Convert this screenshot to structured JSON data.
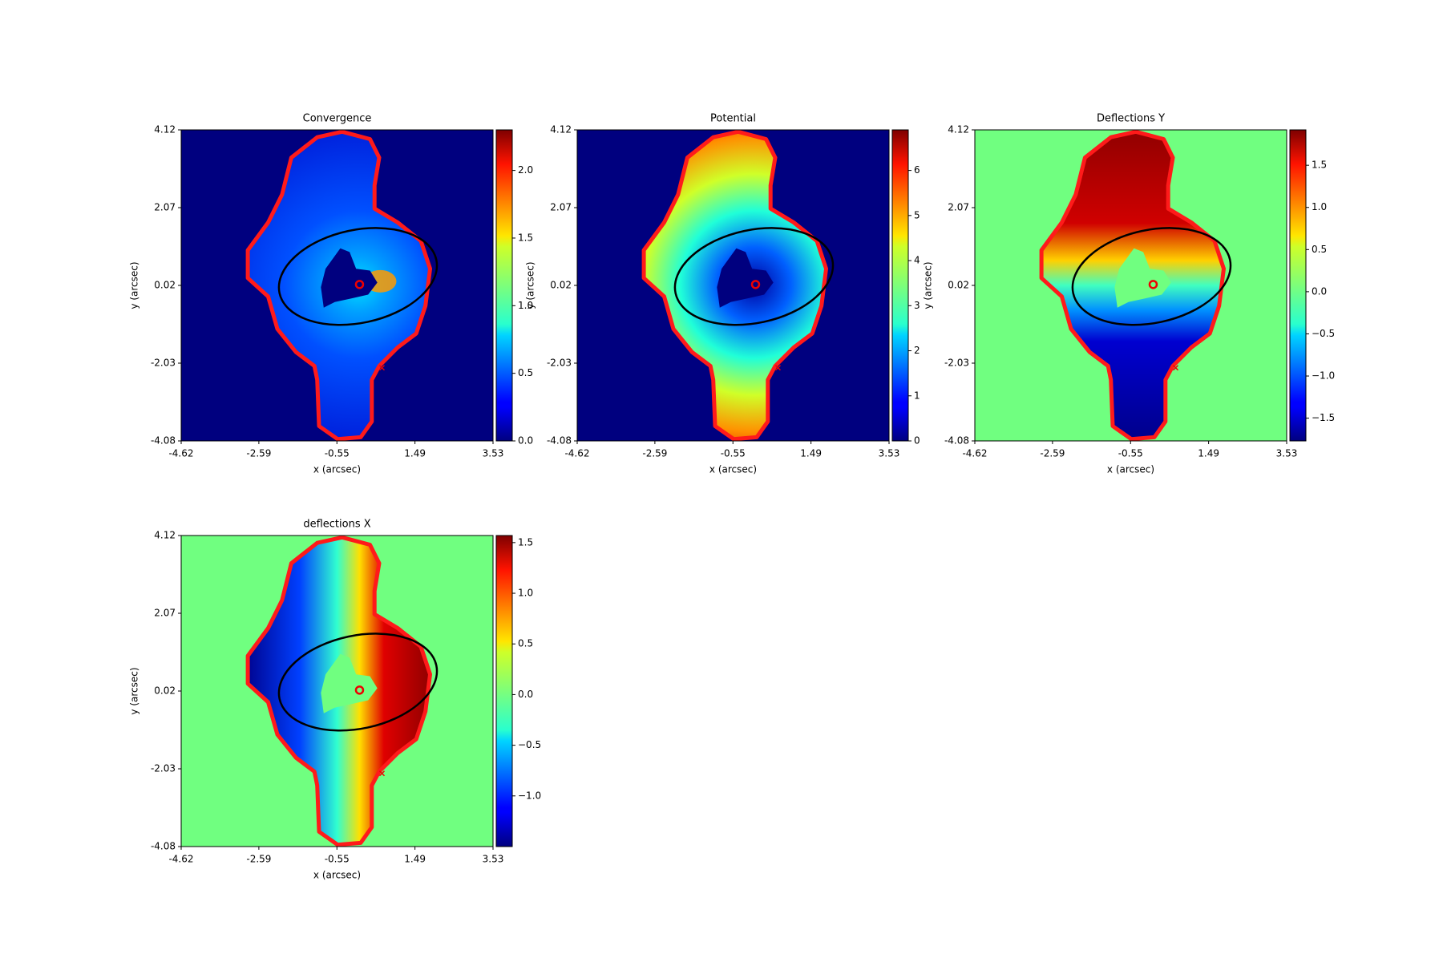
{
  "chart_data": [
    {
      "type": "image",
      "title": "Convergence",
      "xlabel": "x (arcsec)",
      "ylabel": "y (arcsec)",
      "xlim": [
        -4.62,
        3.53
      ],
      "ylim": [
        -4.08,
        4.12
      ],
      "xticks": [
        -4.62,
        -2.59,
        -0.55,
        1.49,
        3.53
      ],
      "yticks": [
        -4.08,
        -2.03,
        0.02,
        2.07,
        4.12
      ],
      "cmap": "jet",
      "clim": [
        0,
        2.3
      ],
      "cticks": [
        {
          "value": 0,
          "label": "0.0"
        },
        0.5,
        {
          "value": 1,
          "label": "1.0"
        },
        1.5,
        {
          "value": 2,
          "label": "2.0"
        }
      ]
    },
    {
      "type": "image",
      "title": "Potential",
      "xlabel": "x (arcsec)",
      "ylabel": "y (arcsec)",
      "xlim": [
        -4.62,
        3.53
      ],
      "ylim": [
        -4.08,
        4.12
      ],
      "xticks": [
        -4.62,
        -2.59,
        -0.55,
        1.49,
        3.53
      ],
      "yticks": [
        -4.08,
        -2.03,
        0.02,
        2.07,
        4.12
      ],
      "cmap": "jet",
      "clim": [
        0,
        6.9
      ],
      "cticks": [
        0,
        1,
        2,
        3,
        4,
        5,
        6
      ]
    },
    {
      "type": "image",
      "title": "Deflections Y",
      "xlabel": "x (arcsec)",
      "ylabel": "y (arcsec)",
      "xlim": [
        -4.62,
        3.53
      ],
      "ylim": [
        -4.08,
        4.12
      ],
      "xticks": [
        -4.62,
        -2.59,
        -0.55,
        1.49,
        3.53
      ],
      "yticks": [
        -4.08,
        -2.03,
        0.02,
        2.07,
        4.12
      ],
      "cmap": "jet",
      "clim": [
        -1.77,
        1.92
      ],
      "cticks": [
        {
          "value": -1.5,
          "label": "−1.5"
        },
        {
          "value": -1,
          "label": "−1.0"
        },
        {
          "value": -0.5,
          "label": "−0.5"
        },
        {
          "value": 0,
          "label": "0.0"
        },
        0.5,
        {
          "value": 1,
          "label": "1.0"
        },
        1.5
      ]
    },
    {
      "type": "image",
      "title": "deflections X",
      "xlabel": "x (arcsec)",
      "ylabel": "y (arcsec)",
      "xlim": [
        -4.62,
        3.53
      ],
      "ylim": [
        -4.08,
        4.12
      ],
      "xticks": [
        -4.62,
        -2.59,
        -0.55,
        1.49,
        3.53
      ],
      "yticks": [
        -4.08,
        -2.03,
        0.02,
        2.07,
        4.12
      ],
      "cmap": "jet",
      "clim": [
        -1.5,
        1.57
      ],
      "cticks": [
        {
          "value": -1,
          "label": "−1.0"
        },
        {
          "value": -0.5,
          "label": "−0.5"
        },
        {
          "value": 0,
          "label": "0.0"
        },
        0.5,
        {
          "value": 1,
          "label": "1.0"
        },
        1.5
      ]
    }
  ]
}
